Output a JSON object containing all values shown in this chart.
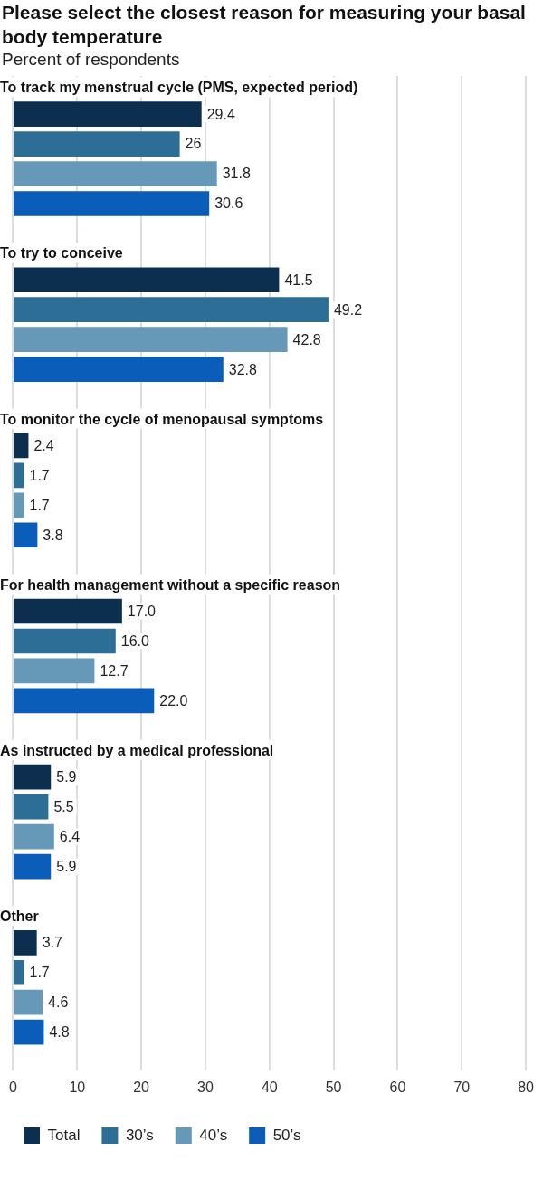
{
  "chart_data": {
    "type": "bar",
    "orientation": "horizontal",
    "title": "Please select the closest reason for measuring your basal body temperature",
    "subtitle": "Percent of respondents",
    "categories": [
      "To track my menstrual cycle (PMS, expected period)",
      "To try to conceive",
      "To monitor the cycle of menopausal symptoms",
      "For health management without a specific reason",
      "As instructed by a medical professional",
      "Other"
    ],
    "series": [
      {
        "name": "Total",
        "color": "#0d2f4f",
        "values": [
          29.4,
          41.5,
          2.4,
          17.0,
          5.9,
          3.7
        ],
        "value_labels": [
          "29.4",
          "41.5",
          "2.4",
          "17.0",
          "5.9",
          "3.7"
        ]
      },
      {
        "name": "30’s",
        "color": "#2c6e95",
        "values": [
          26,
          49.2,
          1.7,
          16.0,
          5.5,
          1.7
        ],
        "value_labels": [
          "26",
          "49.2",
          "1.7",
          "16.0",
          "5.5",
          "1.7"
        ]
      },
      {
        "name": "40’s",
        "color": "#6698b8",
        "values": [
          31.8,
          42.8,
          1.7,
          12.7,
          6.4,
          4.6
        ],
        "value_labels": [
          "31.8",
          "42.8",
          "1.7",
          "12.7",
          "6.4",
          "4.6"
        ]
      },
      {
        "name": "50’s",
        "color": "#0a5db8",
        "values": [
          30.6,
          32.8,
          3.8,
          22.0,
          5.9,
          4.8
        ],
        "value_labels": [
          "30.6",
          "32.8",
          "3.8",
          "22.0",
          "5.9",
          "4.8"
        ]
      }
    ],
    "xlim": [
      0,
      80
    ],
    "xticks": [
      0,
      10,
      20,
      30,
      40,
      50,
      60,
      70,
      80
    ],
    "grid": "x",
    "legend": "bottom"
  }
}
